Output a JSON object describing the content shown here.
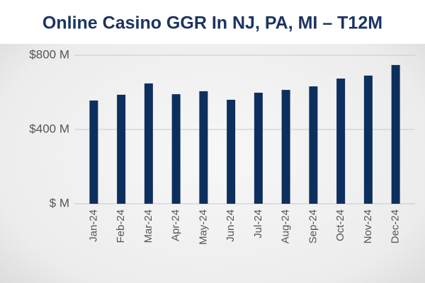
{
  "chart_data": {
    "type": "bar",
    "title": "Online Casino GGR In NJ, PA, MI – T12M",
    "categories": [
      "Jan-24",
      "Feb-24",
      "Mar-24",
      "Apr-24",
      "May-24",
      "Jun-24",
      "Jul-24",
      "Aug-24",
      "Sep-24",
      "Oct-24",
      "Nov-24",
      "Dec-24"
    ],
    "values": [
      556,
      587,
      648,
      590,
      606,
      560,
      598,
      613,
      632,
      674,
      690,
      747
    ],
    "color": "#0d2f5e",
    "ylim": [
      0,
      800
    ],
    "yticks": [
      {
        "value": 0,
        "label": "$ M"
      },
      {
        "value": 400,
        "label": "$400 M"
      },
      {
        "value": 800,
        "label": "$800 M"
      }
    ],
    "grid": true
  }
}
